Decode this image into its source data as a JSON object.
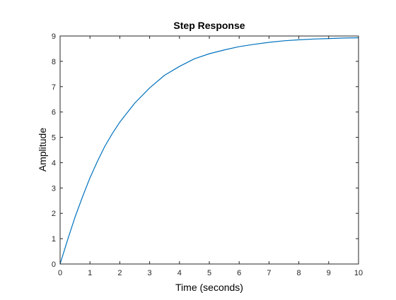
{
  "chart_data": {
    "type": "line",
    "title": "Step Response",
    "xlabel": "Time (seconds)",
    "ylabel": "Amplitude",
    "xlim": [
      0,
      10
    ],
    "ylim": [
      0,
      9
    ],
    "x_ticks": [
      "0",
      "1",
      "2",
      "3",
      "4",
      "5",
      "6",
      "7",
      "8",
      "9",
      "10"
    ],
    "y_ticks": [
      "0",
      "1",
      "2",
      "3",
      "4",
      "5",
      "6",
      "7",
      "8",
      "9"
    ],
    "grid": false,
    "series": [
      {
        "color": "#0072BD",
        "x": [
          0,
          0.25,
          0.5,
          0.75,
          1,
          1.25,
          1.5,
          1.75,
          2,
          2.5,
          3,
          3.5,
          4,
          4.5,
          5,
          5.5,
          6,
          6.5,
          7,
          7.5,
          8,
          8.5,
          9,
          9.5,
          10
        ],
        "y": [
          0,
          0.95,
          1.85,
          2.65,
          3.4,
          4.05,
          4.65,
          5.15,
          5.6,
          6.35,
          6.95,
          7.45,
          7.8,
          8.1,
          8.3,
          8.45,
          8.58,
          8.67,
          8.75,
          8.81,
          8.85,
          8.88,
          8.9,
          8.92,
          8.93
        ]
      }
    ],
    "colors": {
      "axes": "#262626",
      "line": "#0072BD"
    }
  }
}
